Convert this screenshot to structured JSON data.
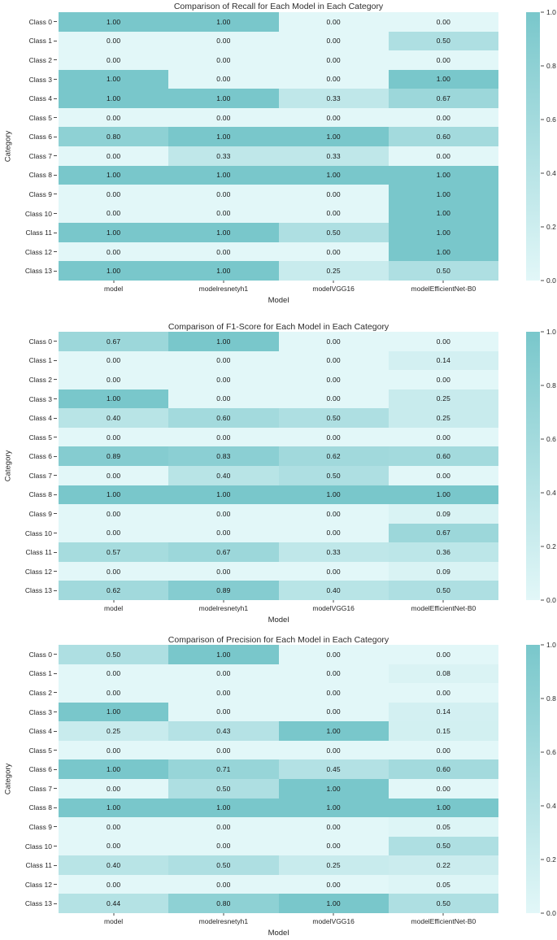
{
  "figure": {
    "background": "#ffffff",
    "text_color": "#262626"
  },
  "colors": {
    "heatmap_low": "#e2f7f8",
    "heatmap_high": "#79c7cb",
    "annotation_text": "#141414",
    "tick_mark": "#4a4a4a"
  },
  "colorbar": {
    "position": "right",
    "ticks": [
      "1.0",
      "0.8",
      "0.6",
      "0.4",
      "0.2",
      "0.0"
    ]
  },
  "chart_data": [
    {
      "id": "recall",
      "type": "heatmap",
      "title": "Comparison of Recall for Each Model in Each Category",
      "xlabel": "Model",
      "ylabel": "Category",
      "categories": [
        "Class 0",
        "Class 1",
        "Class 2",
        "Class 3",
        "Class 4",
        "Class 5",
        "Class 6",
        "Class 7",
        "Class 8",
        "Class 9",
        "Class 10",
        "Class 11",
        "Class 12",
        "Class 13"
      ],
      "models": [
        "model",
        "modelresnetyh1",
        "modelVGG16",
        "modelEfficientNet-B0"
      ],
      "vmin": 0.0,
      "vmax": 1.0,
      "grid": false,
      "annotated": true,
      "values": [
        [
          1.0,
          1.0,
          0.0,
          0.0
        ],
        [
          0.0,
          0.0,
          0.0,
          0.5
        ],
        [
          0.0,
          0.0,
          0.0,
          0.0
        ],
        [
          1.0,
          0.0,
          0.0,
          1.0
        ],
        [
          1.0,
          1.0,
          0.33,
          0.67
        ],
        [
          0.0,
          0.0,
          0.0,
          0.0
        ],
        [
          0.8,
          1.0,
          1.0,
          0.6
        ],
        [
          0.0,
          0.33,
          0.33,
          0.0
        ],
        [
          1.0,
          1.0,
          1.0,
          1.0
        ],
        [
          0.0,
          0.0,
          0.0,
          1.0
        ],
        [
          0.0,
          0.0,
          0.0,
          1.0
        ],
        [
          1.0,
          1.0,
          0.5,
          1.0
        ],
        [
          0.0,
          0.0,
          0.0,
          1.0
        ],
        [
          1.0,
          1.0,
          0.25,
          0.5
        ]
      ]
    },
    {
      "id": "f1-score",
      "type": "heatmap",
      "title": "Comparison of F1-Score for Each Model in Each Category",
      "xlabel": "Model",
      "ylabel": "Category",
      "categories": [
        "Class 0",
        "Class 1",
        "Class 2",
        "Class 3",
        "Class 4",
        "Class 5",
        "Class 6",
        "Class 7",
        "Class 8",
        "Class 9",
        "Class 10",
        "Class 11",
        "Class 12",
        "Class 13"
      ],
      "models": [
        "model",
        "modelresnetyh1",
        "modelVGG16",
        "modelEfficientNet-B0"
      ],
      "vmin": 0.0,
      "vmax": 1.0,
      "grid": false,
      "annotated": true,
      "values": [
        [
          0.67,
          1.0,
          0.0,
          0.0
        ],
        [
          0.0,
          0.0,
          0.0,
          0.14
        ],
        [
          0.0,
          0.0,
          0.0,
          0.0
        ],
        [
          1.0,
          0.0,
          0.0,
          0.25
        ],
        [
          0.4,
          0.6,
          0.5,
          0.25
        ],
        [
          0.0,
          0.0,
          0.0,
          0.0
        ],
        [
          0.89,
          0.83,
          0.62,
          0.6
        ],
        [
          0.0,
          0.4,
          0.5,
          0.0
        ],
        [
          1.0,
          1.0,
          1.0,
          1.0
        ],
        [
          0.0,
          0.0,
          0.0,
          0.09
        ],
        [
          0.0,
          0.0,
          0.0,
          0.67
        ],
        [
          0.57,
          0.67,
          0.33,
          0.36
        ],
        [
          0.0,
          0.0,
          0.0,
          0.09
        ],
        [
          0.62,
          0.89,
          0.4,
          0.5
        ]
      ]
    },
    {
      "id": "precision",
      "type": "heatmap",
      "title": "Comparison of Precision for Each Model in Each Category",
      "xlabel": "Model",
      "ylabel": "Category",
      "categories": [
        "Class 0",
        "Class 1",
        "Class 2",
        "Class 3",
        "Class 4",
        "Class 5",
        "Class 6",
        "Class 7",
        "Class 8",
        "Class 9",
        "Class 10",
        "Class 11",
        "Class 12",
        "Class 13"
      ],
      "models": [
        "model",
        "modelresnetyh1",
        "modelVGG16",
        "modelEfficientNet-B0"
      ],
      "vmin": 0.0,
      "vmax": 1.0,
      "grid": false,
      "annotated": true,
      "values": [
        [
          0.5,
          1.0,
          0.0,
          0.0
        ],
        [
          0.0,
          0.0,
          0.0,
          0.08
        ],
        [
          0.0,
          0.0,
          0.0,
          0.0
        ],
        [
          1.0,
          0.0,
          0.0,
          0.14
        ],
        [
          0.25,
          0.43,
          1.0,
          0.15
        ],
        [
          0.0,
          0.0,
          0.0,
          0.0
        ],
        [
          1.0,
          0.71,
          0.45,
          0.6
        ],
        [
          0.0,
          0.5,
          1.0,
          0.0
        ],
        [
          1.0,
          1.0,
          1.0,
          1.0
        ],
        [
          0.0,
          0.0,
          0.0,
          0.05
        ],
        [
          0.0,
          0.0,
          0.0,
          0.5
        ],
        [
          0.4,
          0.5,
          0.25,
          0.22
        ],
        [
          0.0,
          0.0,
          0.0,
          0.05
        ],
        [
          0.44,
          0.8,
          1.0,
          0.5
        ]
      ]
    }
  ]
}
